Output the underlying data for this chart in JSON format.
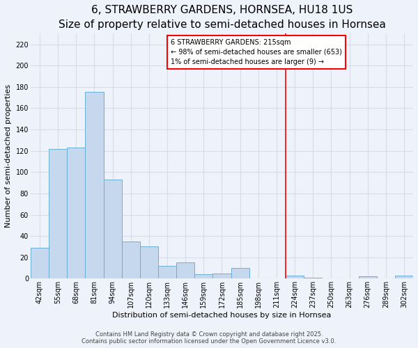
{
  "title": "6, STRAWBERRY GARDENS, HORNSEA, HU18 1US",
  "subtitle": "Size of property relative to semi-detached houses in Hornsea",
  "xlabel": "Distribution of semi-detached houses by size in Hornsea",
  "ylabel": "Number of semi-detached properties",
  "bar_labels": [
    "42sqm",
    "55sqm",
    "68sqm",
    "81sqm",
    "94sqm",
    "107sqm",
    "120sqm",
    "133sqm",
    "146sqm",
    "159sqm",
    "172sqm",
    "185sqm",
    "198sqm",
    "211sqm",
    "224sqm",
    "237sqm",
    "250sqm",
    "263sqm",
    "276sqm",
    "289sqm",
    "302sqm"
  ],
  "bar_values": [
    29,
    122,
    123,
    175,
    93,
    35,
    30,
    12,
    15,
    4,
    5,
    10,
    0,
    0,
    3,
    1,
    0,
    0,
    2,
    0,
    3
  ],
  "bar_color": "#c5d8ee",
  "bar_edge_color": "#6baed6",
  "vline_x": 13.5,
  "vline_color": "red",
  "annotation_line1": "6 STRAWBERRY GARDENS: 215sqm",
  "annotation_line2": "← 98% of semi-detached houses are smaller (653)",
  "annotation_line3": "1% of semi-detached houses are larger (9) →",
  "ylim": [
    0,
    230
  ],
  "yticks": [
    0,
    20,
    40,
    60,
    80,
    100,
    120,
    140,
    160,
    180,
    200,
    220
  ],
  "footer_line1": "Contains HM Land Registry data © Crown copyright and database right 2025.",
  "footer_line2": "Contains public sector information licensed under the Open Government Licence v3.0.",
  "background_color": "#eef2fa",
  "plot_bg_color": "#eef2fa",
  "grid_color": "#d8dce8",
  "title_fontsize": 11,
  "subtitle_fontsize": 9,
  "axis_label_fontsize": 8,
  "tick_fontsize": 7,
  "annotation_fontsize": 7,
  "footer_fontsize": 6
}
